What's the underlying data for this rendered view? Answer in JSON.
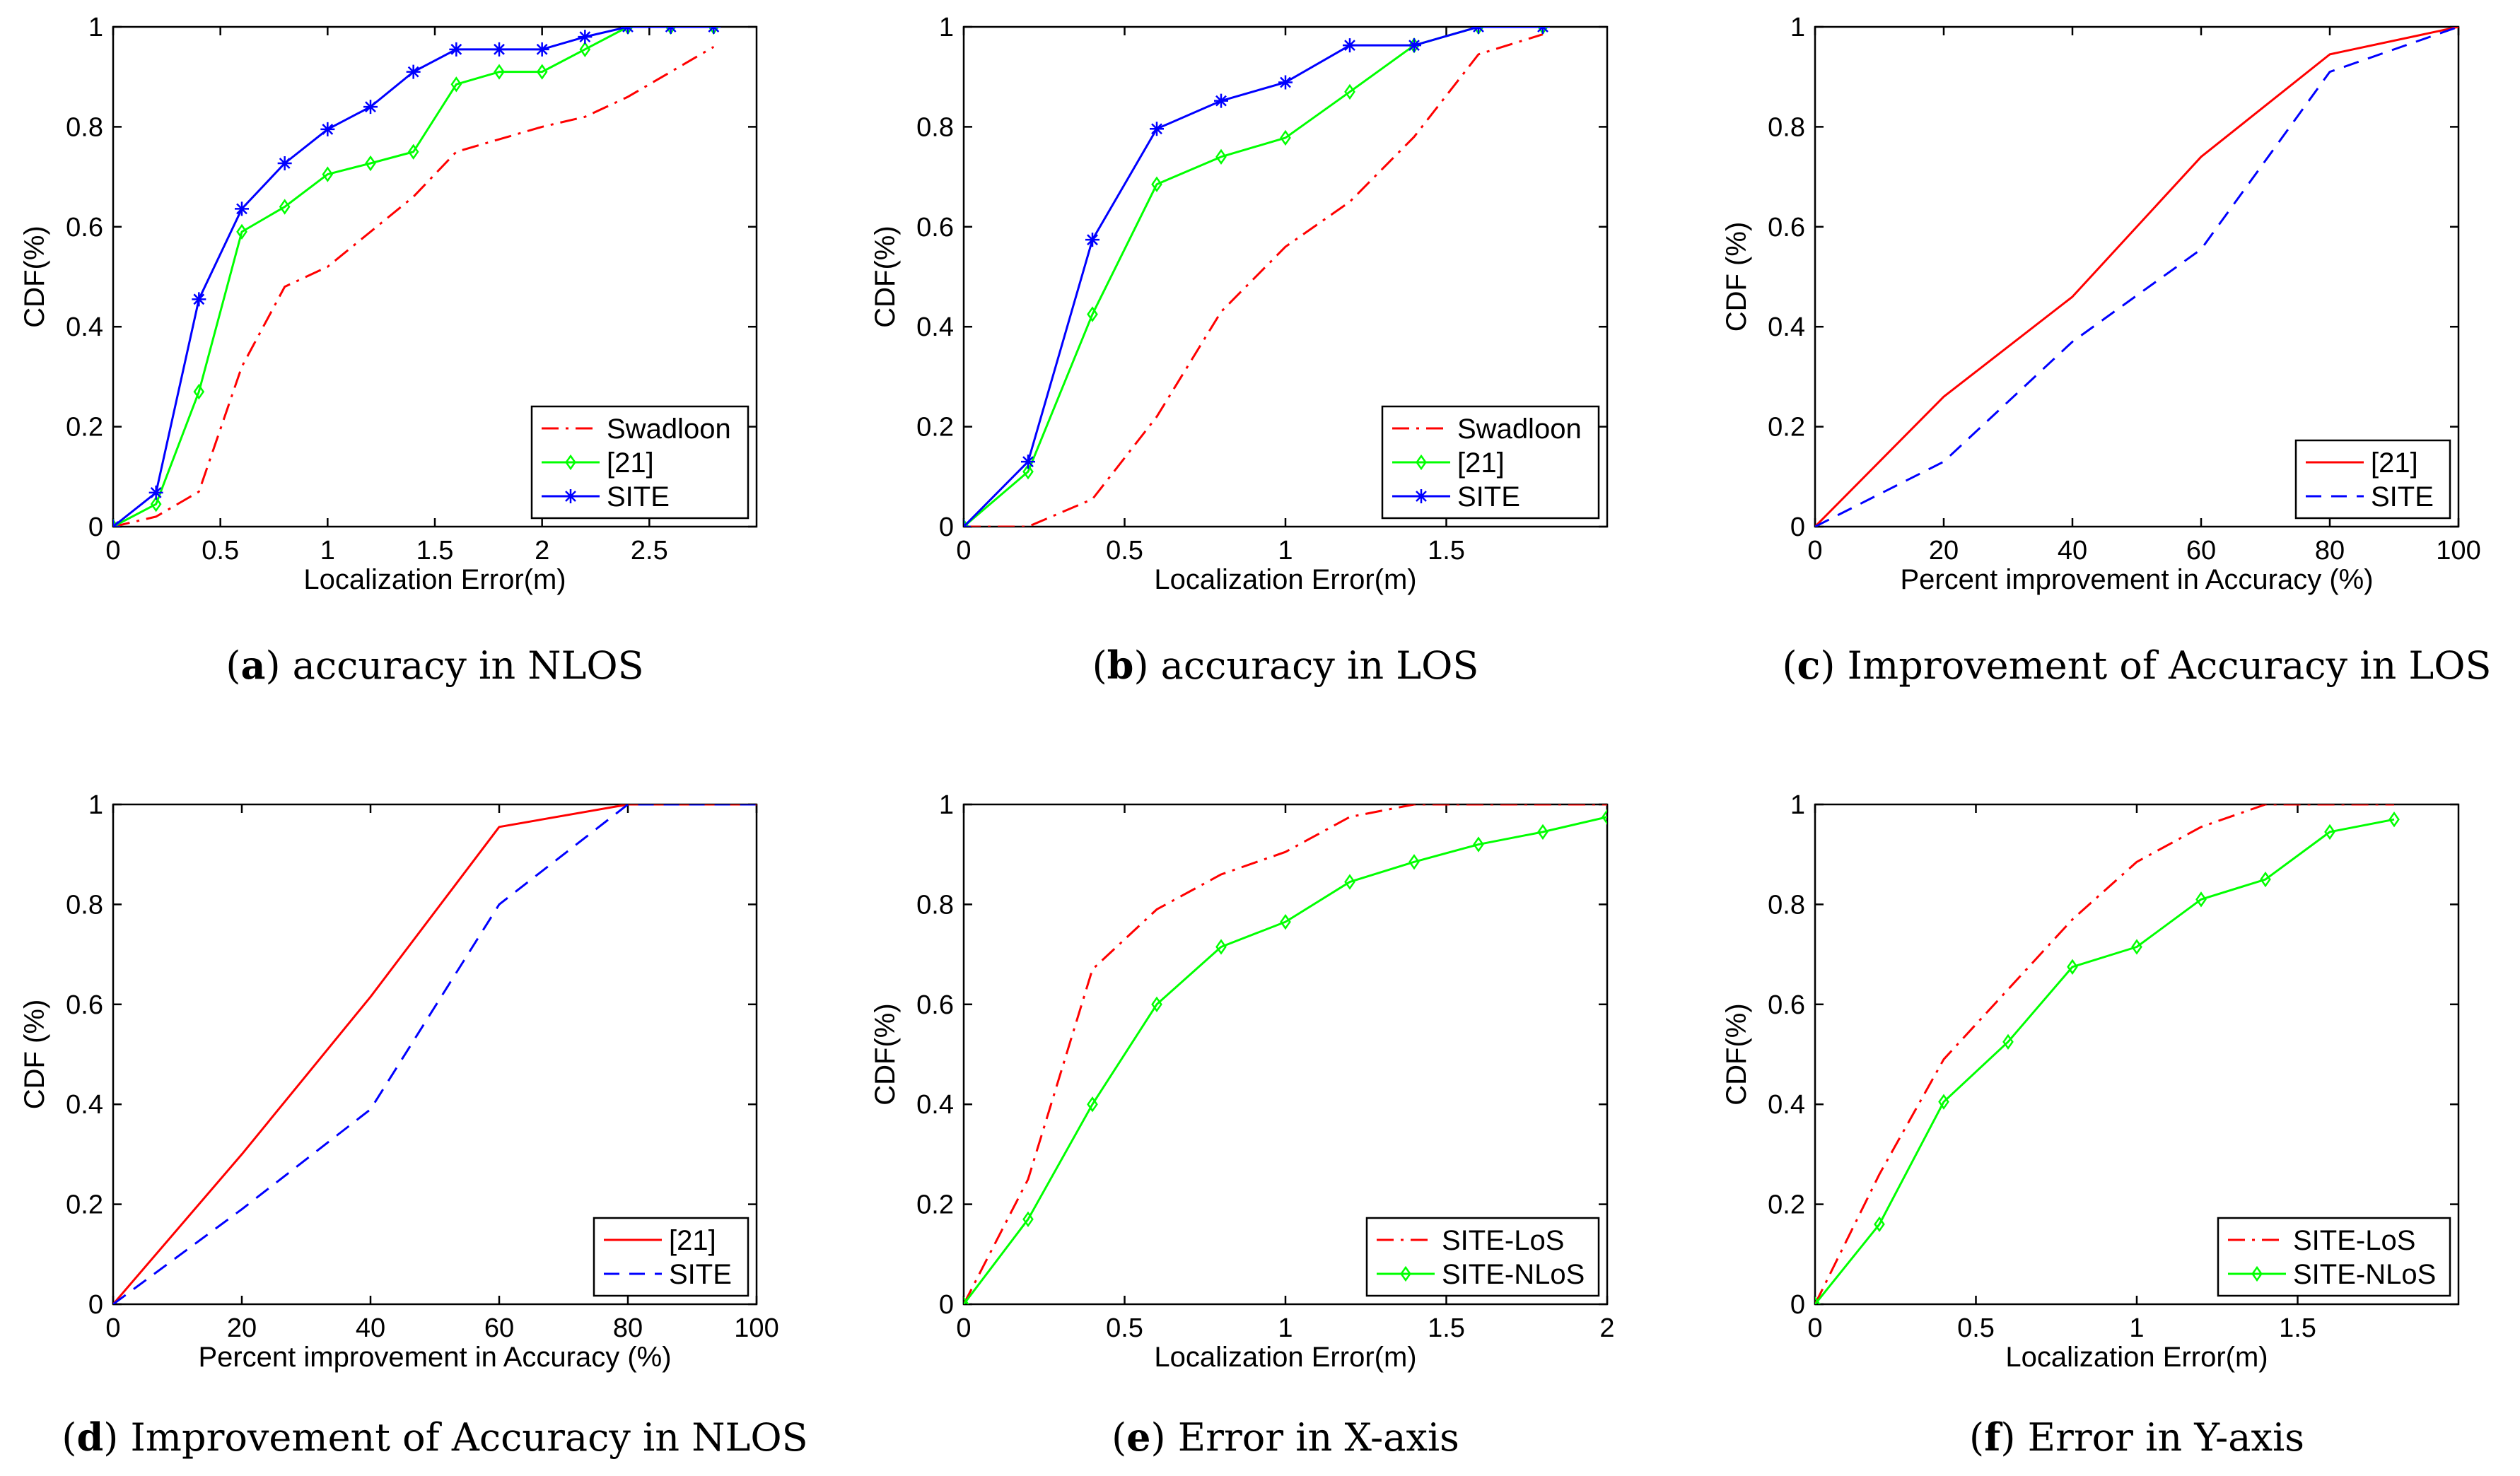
{
  "chart_data": [
    {
      "type": "line",
      "letter": "a",
      "caption": "accuracy in NLOS",
      "xlabel": "Localization Error(m)",
      "ylabel": "CDF(%)",
      "xlim": [
        0,
        3
      ],
      "ylim": [
        0,
        1
      ],
      "xticks": [
        0,
        0.5,
        1,
        1.5,
        2,
        2.5
      ],
      "xtick_labels": [
        "0",
        "0.5",
        "1",
        "1.5",
        "2",
        "2.5"
      ],
      "yticks": [
        0,
        0.2,
        0.4,
        0.6,
        0.8,
        1
      ],
      "ytick_labels": [
        "0",
        "0.2",
        "0.4",
        "0.6",
        "0.8",
        "1"
      ],
      "legend_position": "bottom-right",
      "series": [
        {
          "name": "Swadloon",
          "color": "#ff0000",
          "style": "dashdot",
          "marker": "none",
          "x": [
            0,
            0.2,
            0.4,
            0.6,
            0.8,
            1.0,
            1.2,
            1.4,
            1.6,
            1.8,
            2.0,
            2.2,
            2.4,
            2.6,
            2.8
          ],
          "y": [
            0,
            0.02,
            0.07,
            0.32,
            0.48,
            0.52,
            0.59,
            0.66,
            0.75,
            0.775,
            0.8,
            0.82,
            0.86,
            0.91,
            0.96
          ]
        },
        {
          "name": "[21]",
          "color": "#00ff00",
          "style": "solid",
          "marker": "diamond",
          "x": [
            0,
            0.2,
            0.4,
            0.6,
            0.8,
            1.0,
            1.2,
            1.4,
            1.6,
            1.8,
            2.0,
            2.2,
            2.4,
            2.6,
            2.8
          ],
          "y": [
            0,
            0.045,
            0.27,
            0.59,
            0.64,
            0.705,
            0.727,
            0.75,
            0.885,
            0.91,
            0.91,
            0.955,
            1,
            1,
            1
          ]
        },
        {
          "name": "SITE",
          "color": "#0000ff",
          "style": "solid",
          "marker": "star",
          "x": [
            0,
            0.2,
            0.4,
            0.6,
            0.8,
            1.0,
            1.2,
            1.4,
            1.6,
            1.8,
            2.0,
            2.2,
            2.4,
            2.6,
            2.8
          ],
          "y": [
            0,
            0.068,
            0.455,
            0.636,
            0.727,
            0.795,
            0.84,
            0.91,
            0.955,
            0.955,
            0.955,
            0.98,
            1,
            1,
            1
          ]
        }
      ]
    },
    {
      "type": "line",
      "letter": "b",
      "caption": "accuracy in LOS",
      "xlabel": "Localization Error(m)",
      "ylabel": "CDF(%)",
      "xlim": [
        0,
        2
      ],
      "ylim": [
        0,
        1
      ],
      "xticks": [
        0,
        0.5,
        1,
        1.5
      ],
      "xtick_labels": [
        "0",
        "0.5",
        "1",
        "1.5"
      ],
      "yticks": [
        0,
        0.2,
        0.4,
        0.6,
        0.8,
        1
      ],
      "ytick_labels": [
        "0",
        "0.2",
        "0.4",
        "0.6",
        "0.8",
        "1"
      ],
      "legend_position": "bottom-right",
      "series": [
        {
          "name": "Swadloon",
          "color": "#ff0000",
          "style": "dashdot",
          "marker": "none",
          "x": [
            0,
            0.2,
            0.4,
            0.6,
            0.8,
            1.0,
            1.2,
            1.4,
            1.6,
            1.8
          ],
          "y": [
            0,
            0,
            0.055,
            0.22,
            0.43,
            0.56,
            0.65,
            0.78,
            0.945,
            0.985
          ]
        },
        {
          "name": "[21]",
          "color": "#00ff00",
          "style": "solid",
          "marker": "diamond",
          "x": [
            0,
            0.2,
            0.4,
            0.6,
            0.8,
            1.0,
            1.2,
            1.4,
            1.6,
            1.8
          ],
          "y": [
            0,
            0.11,
            0.425,
            0.685,
            0.74,
            0.778,
            0.87,
            0.963,
            1,
            1
          ]
        },
        {
          "name": "SITE",
          "color": "#0000ff",
          "style": "solid",
          "marker": "star",
          "x": [
            0,
            0.2,
            0.4,
            0.6,
            0.8,
            1.0,
            1.2,
            1.4,
            1.6,
            1.8
          ],
          "y": [
            0,
            0.13,
            0.574,
            0.796,
            0.852,
            0.889,
            0.963,
            0.963,
            1,
            1
          ]
        }
      ]
    },
    {
      "type": "line",
      "letter": "c",
      "caption": "Improvement of Accuracy in LOS",
      "xlabel": "Percent improvement in Accuracy (%)",
      "ylabel": "CDF (%)",
      "xlim": [
        0,
        100
      ],
      "ylim": [
        0,
        1
      ],
      "xticks": [
        0,
        20,
        40,
        60,
        80,
        100
      ],
      "xtick_labels": [
        "0",
        "20",
        "40",
        "60",
        "80",
        "100"
      ],
      "yticks": [
        0,
        0.2,
        0.4,
        0.6,
        0.8,
        1
      ],
      "ytick_labels": [
        "0",
        "0.2",
        "0.4",
        "0.6",
        "0.8",
        "1"
      ],
      "legend_position": "bottom-right",
      "series": [
        {
          "name": "[21]",
          "color": "#ff0000",
          "style": "solid",
          "marker": "none",
          "x": [
            0,
            20,
            40,
            60,
            80,
            100
          ],
          "y": [
            0,
            0.26,
            0.46,
            0.74,
            0.945,
            1
          ]
        },
        {
          "name": "SITE",
          "color": "#0000ff",
          "style": "dashed",
          "marker": "none",
          "x": [
            0,
            20,
            40,
            60,
            80,
            100
          ],
          "y": [
            0,
            0.13,
            0.37,
            0.555,
            0.91,
            1
          ]
        }
      ]
    },
    {
      "type": "line",
      "letter": "d",
      "caption": "Improvement of Accuracy in NLOS",
      "xlabel": "Percent improvement in Accuracy (%)",
      "ylabel": "CDF (%)",
      "xlim": [
        0,
        100
      ],
      "ylim": [
        0,
        1
      ],
      "xticks": [
        0,
        20,
        40,
        60,
        80,
        100
      ],
      "xtick_labels": [
        "0",
        "20",
        "40",
        "60",
        "80",
        "100"
      ],
      "yticks": [
        0,
        0.2,
        0.4,
        0.6,
        0.8,
        1
      ],
      "ytick_labels": [
        "0",
        "0.2",
        "0.4",
        "0.6",
        "0.8",
        "1"
      ],
      "legend_position": "bottom-right",
      "series": [
        {
          "name": "[21]",
          "color": "#ff0000",
          "style": "solid",
          "marker": "none",
          "x": [
            0,
            20,
            40,
            60,
            80,
            100
          ],
          "y": [
            0,
            0.3,
            0.615,
            0.955,
            1,
            1
          ]
        },
        {
          "name": "SITE",
          "color": "#0000ff",
          "style": "dashed",
          "marker": "none",
          "x": [
            0,
            20,
            40,
            60,
            80,
            100
          ],
          "y": [
            0,
            0.19,
            0.39,
            0.8,
            1,
            1
          ]
        }
      ]
    },
    {
      "type": "line",
      "letter": "e",
      "caption": "Error in X-axis",
      "xlabel": "Localization Error(m)",
      "ylabel": "CDF(%)",
      "xlim": [
        0,
        2
      ],
      "ylim": [
        0,
        1
      ],
      "xticks": [
        0,
        0.5,
        1,
        1.5,
        2
      ],
      "xtick_labels": [
        "0",
        "0.5",
        "1",
        "1.5",
        "2"
      ],
      "yticks": [
        0,
        0.2,
        0.4,
        0.6,
        0.8,
        1
      ],
      "ytick_labels": [
        "0",
        "0.2",
        "0.4",
        "0.6",
        "0.8",
        "1"
      ],
      "legend_position": "bottom-right",
      "series": [
        {
          "name": "SITE-LoS",
          "color": "#ff0000",
          "style": "dashdot",
          "marker": "none",
          "x": [
            0,
            0.2,
            0.4,
            0.6,
            0.8,
            1.0,
            1.2,
            1.4,
            1.6,
            1.8,
            2.0
          ],
          "y": [
            0,
            0.25,
            0.67,
            0.79,
            0.86,
            0.905,
            0.975,
            1,
            1,
            1,
            1
          ]
        },
        {
          "name": "SITE-NLoS",
          "color": "#00ff00",
          "style": "solid",
          "marker": "diamond",
          "x": [
            0,
            0.2,
            0.4,
            0.6,
            0.8,
            1.0,
            1.2,
            1.4,
            1.6,
            1.8,
            2.0
          ],
          "y": [
            0,
            0.17,
            0.4,
            0.6,
            0.715,
            0.765,
            0.845,
            0.885,
            0.92,
            0.945,
            0.975
          ]
        }
      ]
    },
    {
      "type": "line",
      "letter": "f",
      "caption": "Error in Y-axis",
      "xlabel": "Localization Error(m)",
      "ylabel": "CDF(%)",
      "xlim": [
        0,
        2
      ],
      "ylim": [
        0,
        1
      ],
      "xticks": [
        0,
        0.5,
        1,
        1.5
      ],
      "xtick_labels": [
        "0",
        "0.5",
        "1",
        "1.5"
      ],
      "yticks": [
        0,
        0.2,
        0.4,
        0.6,
        0.8,
        1
      ],
      "ytick_labels": [
        "0",
        "0.2",
        "0.4",
        "0.6",
        "0.8",
        "1"
      ],
      "legend_position": "bottom-right",
      "series": [
        {
          "name": "SITE-LoS",
          "color": "#ff0000",
          "style": "dashdot",
          "marker": "none",
          "x": [
            0,
            0.2,
            0.4,
            0.6,
            0.8,
            1.0,
            1.2,
            1.4,
            1.6,
            1.8
          ],
          "y": [
            0,
            0.26,
            0.49,
            0.63,
            0.77,
            0.885,
            0.955,
            1,
            1,
            1
          ]
        },
        {
          "name": "SITE-NLoS",
          "color": "#00ff00",
          "style": "solid",
          "marker": "diamond",
          "x": [
            0,
            0.2,
            0.4,
            0.6,
            0.8,
            1.0,
            1.2,
            1.4,
            1.6,
            1.8
          ],
          "y": [
            0,
            0.16,
            0.405,
            0.525,
            0.675,
            0.715,
            0.81,
            0.85,
            0.945,
            0.97
          ]
        }
      ]
    }
  ]
}
